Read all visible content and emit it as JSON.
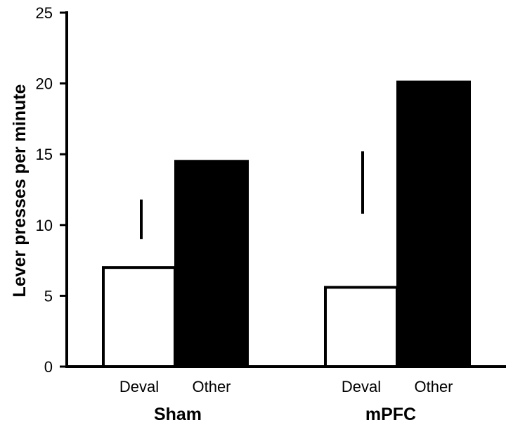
{
  "chart_data": {
    "type": "bar",
    "title": "",
    "ylabel": "Lever presses per minute",
    "xlabel": "",
    "ylim": [
      0,
      25
    ],
    "yticks": [
      0,
      5,
      10,
      15,
      20,
      25
    ],
    "groups": [
      {
        "name": "Sham",
        "bars": [
          {
            "label": "Deval",
            "value": 7.0,
            "error_bar": [
              9.0,
              11.8
            ],
            "fill": "#ffffff"
          },
          {
            "label": "Other",
            "value": 14.5,
            "fill": "#000000"
          }
        ]
      },
      {
        "name": "mPFC",
        "bars": [
          {
            "label": "Deval",
            "value": 5.6,
            "error_bar": [
              10.8,
              15.2
            ],
            "fill": "#ffffff"
          },
          {
            "label": "Other",
            "value": 20.1,
            "fill": "#000000"
          }
        ]
      }
    ],
    "grid": false,
    "legend": "none",
    "colors": {
      "axis": "#000000",
      "deval_fill": "#ffffff",
      "other_fill": "#000000"
    }
  }
}
